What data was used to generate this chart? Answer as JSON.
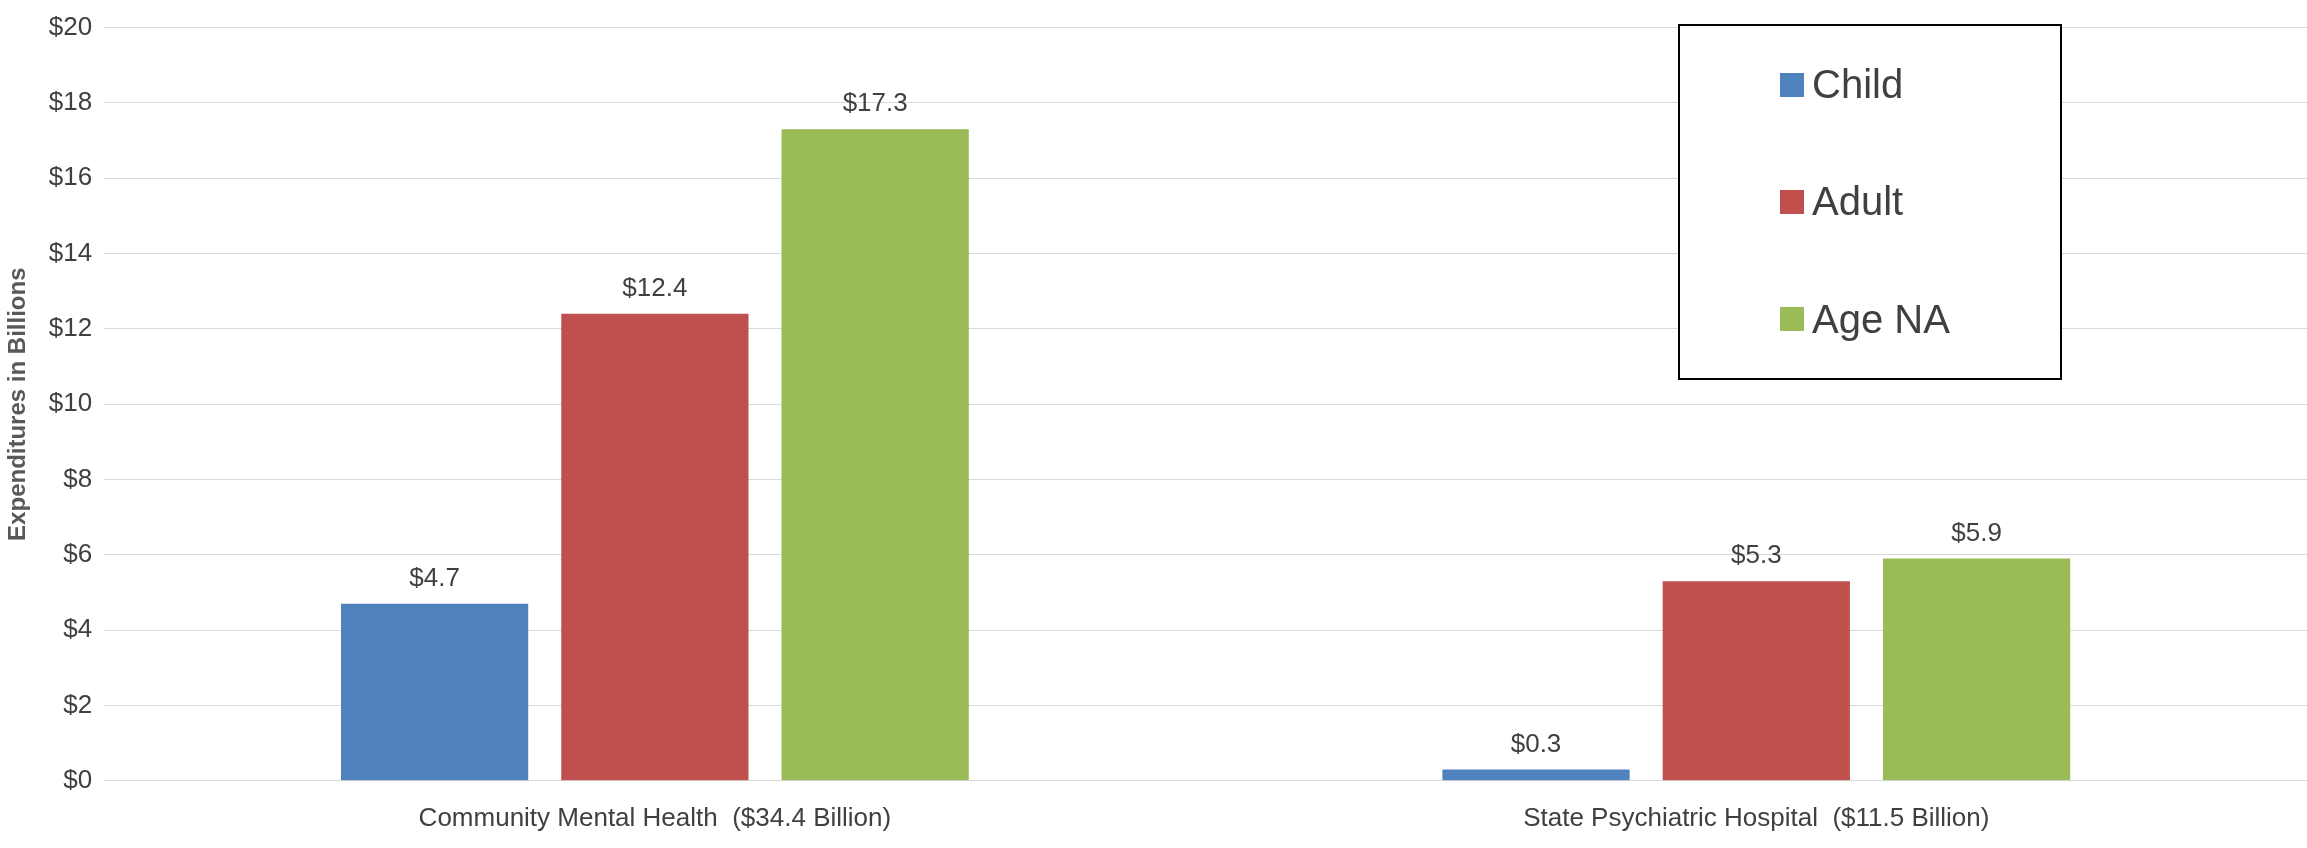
{
  "chart_data": {
    "type": "bar",
    "ylabel": "Expenditures in Billions",
    "categories": [
      "Community Mental Health  ($34.4 Billion)",
      "State Psychiatric Hospital  ($11.5 Billion)"
    ],
    "series": [
      {
        "name": "Child",
        "color": "#4f81bd",
        "values": [
          4.7,
          0.3
        ],
        "value_labels": [
          "$4.7",
          "$0.3"
        ]
      },
      {
        "name": "Adult",
        "color": "#c0504d",
        "values": [
          12.4,
          5.3
        ],
        "value_labels": [
          "$12.4",
          "$5.3"
        ]
      },
      {
        "name": "Age NA",
        "color": "#9bbb59",
        "values": [
          17.3,
          5.9
        ],
        "value_labels": [
          "$17.3",
          "$5.9"
        ]
      }
    ],
    "ylim": [
      0,
      20
    ],
    "yticks": [
      {
        "value": 0,
        "label": "$0"
      },
      {
        "value": 2,
        "label": "$2"
      },
      {
        "value": 4,
        "label": "$4"
      },
      {
        "value": 6,
        "label": "$6"
      },
      {
        "value": 8,
        "label": "$8"
      },
      {
        "value": 10,
        "label": "$10"
      },
      {
        "value": 12,
        "label": "$12"
      },
      {
        "value": 14,
        "label": "$14"
      },
      {
        "value": 16,
        "label": "$16"
      },
      {
        "value": 18,
        "label": "$18"
      },
      {
        "value": 20,
        "label": "$20"
      }
    ],
    "grid": "y",
    "legend": "top right"
  }
}
